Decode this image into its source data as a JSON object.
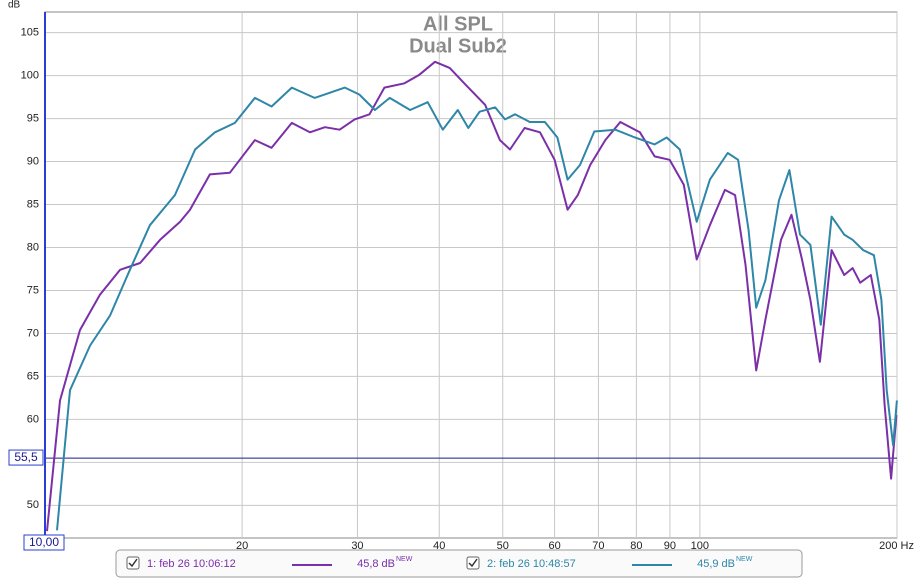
{
  "chart_data": {
    "type": "line",
    "title": "All SPL",
    "subtitle": "Dual Sub2",
    "y_label": "dB",
    "xscale": "log",
    "grid": true,
    "xlim": [
      10,
      200
    ],
    "ylim": [
      46.2,
      107.4
    ],
    "xticks": [
      20,
      30,
      40,
      50,
      60,
      70,
      80,
      90,
      100,
      {
        "value": 200,
        "label": "200 Hz"
      }
    ],
    "yticks": [
      50,
      55,
      60,
      65,
      70,
      75,
      80,
      85,
      90,
      95,
      100,
      105
    ],
    "cursor": {
      "x": {
        "value": 10,
        "label": "10,00"
      },
      "y": {
        "value": 55.5,
        "label": "55,5"
      }
    },
    "series": [
      {
        "name": "1: feb 26 10:06:12",
        "color": "#7b2fa8",
        "level_label": "45,8 dB",
        "level_badge": "NEW",
        "x": [
          10.07,
          10.54,
          11.31,
          12.13,
          13.02,
          13.97,
          14.99,
          16.08,
          16.65,
          17.86,
          19.16,
          20.92,
          22.18,
          23.82,
          25.38,
          26.76,
          28.17,
          29.7,
          31.3,
          32.98,
          35.4,
          37.3,
          39.4,
          41.5,
          43.8,
          47.0,
          49.5,
          51.3,
          54.0,
          57.0,
          60.0,
          62.8,
          65.1,
          68.0,
          71.7,
          75.6,
          81.0,
          85.3,
          89.9,
          94.5,
          98.9,
          103.6,
          109.2,
          113.2,
          117.4,
          121.9,
          125.9,
          133.0,
          138.0,
          143.2,
          147.5,
          152.5,
          158.9,
          166.1,
          171.1,
          175.7,
          182.4,
          187.9,
          191.5,
          195.9,
          199.6
        ],
        "values": [
          47.0,
          62.2,
          70.4,
          74.5,
          77.4,
          78.2,
          80.9,
          83.0,
          84.4,
          88.5,
          88.7,
          92.5,
          91.6,
          94.5,
          93.4,
          94.0,
          93.7,
          94.9,
          95.5,
          98.6,
          99.1,
          100.1,
          101.6,
          100.9,
          99.0,
          96.6,
          92.5,
          91.4,
          93.9,
          93.4,
          90.2,
          84.4,
          86.1,
          89.6,
          92.5,
          94.6,
          93.4,
          90.6,
          90.2,
          87.3,
          78.6,
          82.6,
          86.7,
          86.1,
          78.0,
          65.7,
          71.6,
          80.9,
          83.8,
          78.6,
          73.9,
          66.7,
          79.7,
          76.8,
          77.6,
          75.9,
          76.8,
          71.6,
          61.7,
          53.1,
          60.5
        ]
      },
      {
        "name": "2: feb 26 10:48:57",
        "color": "#2e86a8",
        "level_label": "45,9 dB",
        "level_badge": "NEW",
        "x": [
          10.43,
          10.92,
          11.72,
          12.57,
          13.48,
          14.46,
          15.79,
          16.95,
          18.18,
          19.5,
          20.92,
          22.18,
          23.82,
          25.8,
          28.7,
          30.2,
          31.9,
          33.6,
          36.1,
          38.4,
          40.5,
          42.7,
          44.3,
          46.1,
          48.7,
          50.4,
          52.2,
          55.0,
          58.0,
          60.6,
          62.8,
          65.6,
          69.0,
          74.3,
          79.6,
          85.3,
          89.0,
          93.2,
          98.9,
          103.6,
          110.3,
          114.4,
          118.7,
          121.9,
          125.9,
          132.1,
          137.0,
          142.2,
          147.5,
          153.0,
          158.9,
          166.1,
          171.1,
          177.6,
          184.4,
          189.3,
          192.9,
          197.3,
          199.9
        ],
        "values": [
          47.1,
          63.4,
          68.6,
          72.1,
          77.4,
          82.6,
          86.1,
          91.4,
          93.4,
          94.5,
          97.4,
          96.4,
          98.6,
          97.4,
          98.6,
          97.8,
          96.0,
          97.4,
          96.0,
          96.9,
          93.7,
          96.0,
          93.9,
          95.8,
          96.3,
          94.9,
          95.5,
          94.6,
          94.6,
          92.8,
          87.9,
          89.6,
          93.5,
          93.7,
          92.8,
          92.0,
          92.8,
          91.4,
          83.0,
          87.9,
          91.0,
          90.2,
          82.0,
          73.0,
          76.2,
          85.5,
          89.0,
          81.5,
          80.3,
          71.0,
          83.6,
          81.5,
          80.9,
          79.7,
          79.1,
          73.9,
          63.4,
          57.0,
          62.2
        ]
      }
    ]
  }
}
